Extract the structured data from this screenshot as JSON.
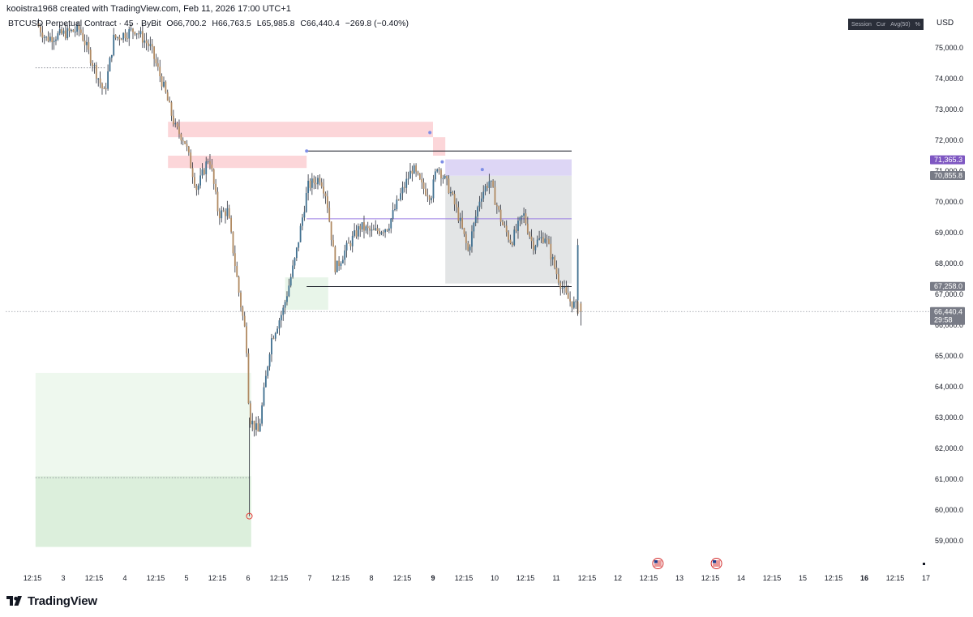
{
  "header": {
    "credit": "kooistra1968 created with TradingView.com, Feb 11, 2026 17:00 UTC+1",
    "symbol": "BTCUSD Perpetual Contract · 45 · ByBit",
    "open": "O66,700.2",
    "high": "H66,763.5",
    "low": "L65,985.8",
    "close": "C66,440.4",
    "change": "−269.8 (−0.40%)"
  },
  "toolbar": {
    "items": [
      "Session",
      "Cur",
      "Avg(50)",
      "%"
    ]
  },
  "currency_label": "USD",
  "brand": {
    "name": "TradingView",
    "logo_icon": "tradingview-logo-icon"
  },
  "chart_data": {
    "type": "candlestick",
    "title": "BTCUSD Perpetual Contract · 45 · ByBit",
    "ylim": [
      58500,
      76300
    ],
    "y_ticks": [
      59000,
      60000,
      61000,
      62000,
      63000,
      64000,
      65000,
      66000,
      67000,
      68000,
      69000,
      70000,
      71000,
      72000,
      73000,
      74000,
      75000
    ],
    "y_tick_labels": [
      "59,000.0",
      "60,000.0",
      "61,000.0",
      "62,000.0",
      "63,000.0",
      "64,000.0",
      "65,000.0",
      "66,000.0",
      "67,000.0",
      "68,000.0",
      "69,000.0",
      "70,000.0",
      "71,000.0",
      "72,000.0",
      "73,000.0",
      "74,000.0",
      "75,000.0"
    ],
    "x_labels": [
      "12:15",
      "3",
      "12:15",
      "4",
      "12:15",
      "5",
      "12:15",
      "6",
      "12:15",
      "7",
      "12:15",
      "8",
      "12:15",
      "9",
      "12:15",
      "10",
      "12:15",
      "11",
      "12:15",
      "12",
      "12:15",
      "13",
      "12:15",
      "14",
      "12:15",
      "15",
      "12:15",
      "16",
      "12:15",
      "17"
    ],
    "x_labels_bold": [
      "9",
      "16"
    ],
    "x_days_range": [
      2.55,
      17.05
    ],
    "price_path": [
      [
        2.6,
        75800
      ],
      [
        2.75,
        75300
      ],
      [
        3.3,
        75600
      ],
      [
        3.7,
        73500
      ],
      [
        3.85,
        75300
      ],
      [
        4.2,
        75600
      ],
      [
        4.45,
        75000
      ],
      [
        4.65,
        73800
      ],
      [
        4.85,
        72400
      ],
      [
        5.0,
        72000
      ],
      [
        5.2,
        70400
      ],
      [
        5.4,
        71500
      ],
      [
        5.55,
        69600
      ],
      [
        5.7,
        69700
      ],
      [
        5.9,
        66800
      ],
      [
        6.0,
        65600
      ],
      [
        6.05,
        63000
      ],
      [
        6.2,
        62500
      ],
      [
        6.4,
        65500
      ],
      [
        6.6,
        66500
      ],
      [
        6.8,
        68200
      ],
      [
        7.0,
        70500
      ],
      [
        7.2,
        70800
      ],
      [
        7.3,
        70200
      ],
      [
        7.45,
        67800
      ],
      [
        7.6,
        68400
      ],
      [
        7.85,
        69200
      ],
      [
        8.05,
        69000
      ],
      [
        8.3,
        69200
      ],
      [
        8.5,
        70200
      ],
      [
        8.7,
        71100
      ],
      [
        8.85,
        70500
      ],
      [
        9.0,
        70200
      ],
      [
        9.1,
        71200
      ],
      [
        9.3,
        70400
      ],
      [
        9.45,
        69500
      ],
      [
        9.6,
        68400
      ],
      [
        9.8,
        70200
      ],
      [
        9.95,
        70700
      ],
      [
        10.15,
        69300
      ],
      [
        10.3,
        68700
      ],
      [
        10.5,
        69600
      ],
      [
        10.65,
        68600
      ],
      [
        10.85,
        68900
      ],
      [
        11.05,
        67600
      ],
      [
        11.2,
        66900
      ],
      [
        11.3,
        66700
      ],
      [
        11.4,
        66500
      ]
    ],
    "last_candle": {
      "open": 66700.2,
      "high": 66763.5,
      "low": 65985.8,
      "close": 66440.4
    },
    "extreme_low": {
      "day": 6.02,
      "price": 59800
    },
    "zones": [
      {
        "kind": "supply",
        "color": "#fcd6d9",
        "days": [
          4.7,
          9.0
        ],
        "price": [
          72100,
          72600
        ]
      },
      {
        "kind": "supply",
        "color": "#fcd6d9",
        "days": [
          9.0,
          9.2
        ],
        "price": [
          71500,
          72100
        ]
      },
      {
        "kind": "supply",
        "color": "#fcd6d9",
        "days": [
          4.7,
          6.95
        ],
        "price": [
          71100,
          71500
        ]
      },
      {
        "kind": "demand",
        "color": "#e8f5e9",
        "days": [
          6.6,
          7.3
        ],
        "price": [
          66500,
          67550
        ]
      },
      {
        "kind": "demand",
        "color": "#eef8ee",
        "days": [
          2.55,
          6.05
        ],
        "price": [
          61100,
          64450
        ]
      },
      {
        "kind": "demand",
        "color": "#dcefdc",
        "days": [
          2.55,
          6.05
        ],
        "price": [
          58800,
          61100
        ]
      },
      {
        "kind": "range",
        "color": "#e3e5e6",
        "days": [
          9.2,
          11.25
        ],
        "price": [
          67350,
          70850
        ]
      },
      {
        "kind": "range",
        "color": "#ddd6f5",
        "days": [
          9.2,
          11.25
        ],
        "price": [
          70850,
          71380
        ]
      }
    ],
    "lines": [
      {
        "kind": "range-high",
        "color": "#131722",
        "days": [
          6.95,
          11.25
        ],
        "price": 71650
      },
      {
        "kind": "range-low",
        "color": "#131722",
        "days": [
          6.95,
          11.25
        ],
        "price": 67250
      },
      {
        "kind": "midline",
        "color": "#9c7fe3",
        "days": [
          6.95,
          11.25
        ],
        "price": 69450
      }
    ],
    "dotted_lines": [
      {
        "days": [
          2.55,
          3.7
        ],
        "price": 74350
      },
      {
        "days": [
          2.55,
          6.05
        ],
        "price": 61050
      }
    ],
    "price_tags": [
      {
        "label": "71,365.3",
        "price": 71365.3,
        "color": "#7e57c2"
      },
      {
        "label": "70,855.8",
        "price": 70855.8,
        "color": "#787b86"
      },
      {
        "label": "67,258.0",
        "price": 67258.0,
        "color": "#787b86"
      },
      {
        "label": "66,440.4",
        "price": 66440.4,
        "color": "#787b86",
        "sub": "29:58"
      }
    ],
    "event_icons": [
      {
        "name": "us-flag-icon",
        "day": 12.65
      },
      {
        "name": "us-flag-icon",
        "day": 13.6
      }
    ],
    "candle_colors": {
      "up": "#3f6f8f",
      "down": "#b08a62",
      "wick": "#2a2e39"
    }
  }
}
